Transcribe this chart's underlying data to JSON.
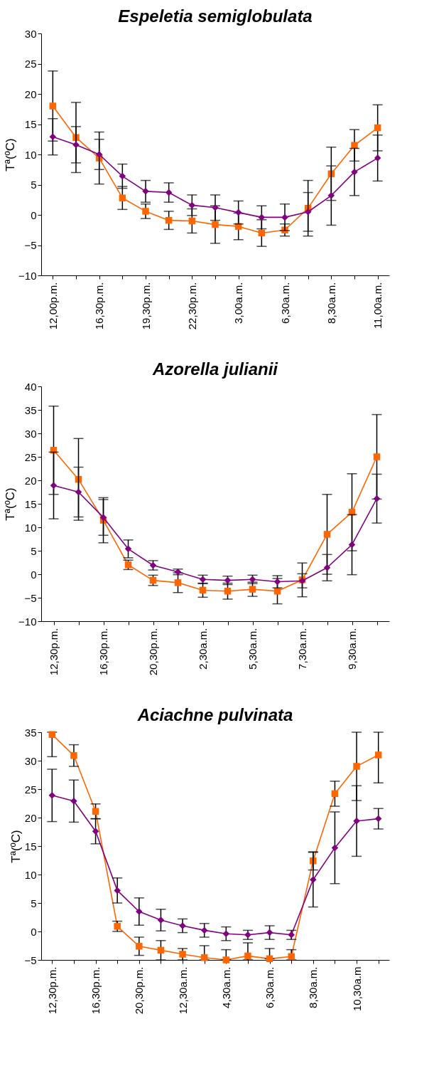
{
  "chart_data": [
    {
      "type": "line",
      "title": "Espeletia semiglobulata",
      "ylabel": "Tª(ºC)",
      "categories": [
        "12,00p.m.",
        null,
        "16,30p.m.",
        null,
        "19,30p.m.",
        null,
        "22,30p.m.",
        null,
        "3,00a.m.",
        null,
        "6,30a.m.",
        null,
        "8,30a.m.",
        null,
        "11,00a.m."
      ],
      "ylim": [
        -10,
        30
      ],
      "yticks": [
        -10,
        -5,
        0,
        5,
        10,
        15,
        20,
        25,
        30
      ],
      "grid": false,
      "series": [
        {
          "color": "#ff6600",
          "marker": "square",
          "values": [
            18.0,
            12.8,
            9.4,
            2.8,
            0.6,
            -0.9,
            -1.0,
            -1.6,
            -1.9,
            -3.0,
            -2.5,
            1.1,
            6.8,
            11.5,
            14.4
          ],
          "errors": [
            5.8,
            5.8,
            4.3,
            1.9,
            1.2,
            1.5,
            2.0,
            3.1,
            2.2,
            2.2,
            1.0,
            4.6,
            4.4,
            2.6,
            3.8
          ]
        },
        {
          "color": "#800080",
          "marker": "diamond",
          "values": [
            12.9,
            11.6,
            10.0,
            6.4,
            3.9,
            3.7,
            1.6,
            1.2,
            0.4,
            -0.4,
            -0.4,
            0.5,
            3.2,
            7.1,
            9.4
          ],
          "errors": [
            3.0,
            3.0,
            2.5,
            2.0,
            1.8,
            1.6,
            1.7,
            2.1,
            1.9,
            1.9,
            2.2,
            3.2,
            4.9,
            3.9,
            3.8
          ]
        }
      ]
    },
    {
      "type": "line",
      "title": "Azorella julianii",
      "ylabel": "Tª(ºC)",
      "categories": [
        "12,30p.m.",
        null,
        "16,30p.m.",
        null,
        "20,30p.m.",
        null,
        "2,30a.m.",
        null,
        "5,30a.m.",
        null,
        "7,30a.m.",
        null,
        "9,30a.m.",
        null
      ],
      "ylim": [
        -10,
        40
      ],
      "yticks": [
        -10,
        -5,
        0,
        5,
        10,
        15,
        20,
        25,
        30,
        35,
        40
      ],
      "grid": false,
      "series": [
        {
          "color": "#ff6600",
          "marker": "square",
          "values": [
            26.4,
            20.2,
            11.5,
            2.0,
            -1.3,
            -1.8,
            -3.4,
            -3.6,
            -3.2,
            -3.6,
            -1.2,
            8.5,
            13.2,
            25.0
          ],
          "errors": [
            9.4,
            8.7,
            4.8,
            1.0,
            1.1,
            2.1,
            1.5,
            1.7,
            1.5,
            2.7,
            3.6,
            8.5,
            8.2,
            9.0
          ]
        },
        {
          "color": "#800080",
          "marker": "diamond",
          "values": [
            18.9,
            17.5,
            12.1,
            5.4,
            1.9,
            0.5,
            -1.1,
            -1.3,
            -1.1,
            -1.6,
            -1.4,
            1.4,
            6.3,
            16.1
          ],
          "errors": [
            7.1,
            5.3,
            3.8,
            1.9,
            1.0,
            0.6,
            0.9,
            0.9,
            0.9,
            1.3,
            1.5,
            2.8,
            6.4,
            5.2
          ]
        }
      ]
    },
    {
      "type": "line",
      "title": "Aciachne pulvinata",
      "ylabel": "Tª(ºC)",
      "categories": [
        "12,30p.m.",
        null,
        "16,30p.m.",
        null,
        "20,30p.m.",
        null,
        "12,30a.m.",
        null,
        "4,30a.m.",
        null,
        "6,30a.m.",
        null,
        "8,30a.m.",
        null,
        "10,30a.m",
        null
      ],
      "ylim": [
        -5,
        35
      ],
      "yticks": [
        -5,
        0,
        5,
        10,
        15,
        20,
        25,
        30,
        35
      ],
      "grid": false,
      "series": [
        {
          "color": "#ff6600",
          "marker": "square",
          "values": [
            34.6,
            30.9,
            21.1,
            0.9,
            -2.6,
            -3.3,
            -4.0,
            -4.6,
            -5.0,
            -4.3,
            -4.8,
            -4.4,
            12.4,
            24.2,
            29.0,
            31.0
          ],
          "errors": [
            [
              30.7,
              35.0
            ],
            1.9,
            1.3,
            0.9,
            1.6,
            1.7,
            1.0,
            [
              -5.0,
              -2.5
            ],
            [
              -5.0,
              -3.2
            ],
            [
              -5.0,
              -2.0
            ],
            [
              -4.8,
              -3.0
            ],
            [
              -5.0,
              -3.2
            ],
            1.6,
            2.2,
            6.0,
            [
              26.1,
              35.0
            ]
          ]
        },
        {
          "color": "#800080",
          "marker": "diamond",
          "values": [
            23.9,
            22.9,
            17.6,
            7.2,
            3.5,
            2.0,
            1.0,
            0.2,
            -0.4,
            -0.6,
            -0.2,
            -0.6,
            9.1,
            14.7,
            19.4,
            19.8
          ],
          "errors": [
            4.6,
            3.7,
            2.2,
            2.2,
            2.4,
            1.9,
            1.2,
            1.2,
            1.2,
            0.8,
            1.2,
            0.8,
            4.8,
            6.3,
            6.2,
            1.8
          ]
        }
      ]
    }
  ]
}
